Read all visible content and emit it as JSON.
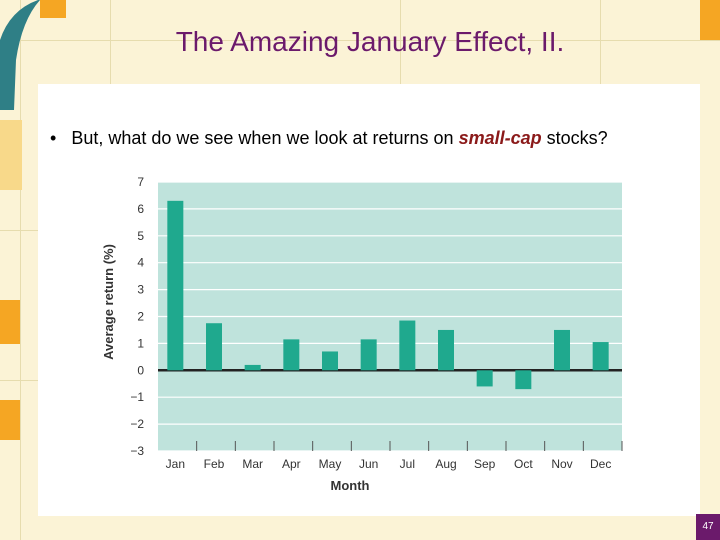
{
  "slide": {
    "title": "The Amazing January Effect, II.",
    "bullet_marker": "•",
    "bullet_text_before": "But, what do we see when we look at returns on ",
    "bullet_text_emphasis": "small-cap",
    "bullet_text_after": " stocks?",
    "slide_number": "47"
  },
  "colors": {
    "title": "#6b1a6b",
    "emphasis": "#8b1a1a",
    "bar": "#1fa98e",
    "plot_background": "#bfe3dc",
    "frame": "#fbf3d6",
    "accent_orange": "#f5a623"
  },
  "chart_data": {
    "type": "bar",
    "title": "",
    "xlabel": "Month",
    "ylabel": "Average return (%)",
    "categories": [
      "Jan",
      "Feb",
      "Mar",
      "Apr",
      "May",
      "Jun",
      "Jul",
      "Aug",
      "Sep",
      "Oct",
      "Nov",
      "Dec"
    ],
    "values": [
      6.3,
      1.75,
      0.2,
      1.15,
      0.7,
      1.15,
      1.85,
      1.5,
      -0.6,
      -0.7,
      1.5,
      1.05
    ],
    "ylim": [
      -3,
      7
    ],
    "yticks": [
      "7",
      "6",
      "5",
      "4",
      "3",
      "2",
      "1",
      "0",
      "−1",
      "−2",
      "−3"
    ],
    "ytick_values": [
      7,
      6,
      5,
      4,
      3,
      2,
      1,
      0,
      -1,
      -2,
      -3
    ],
    "grid": true,
    "legend": "none"
  }
}
